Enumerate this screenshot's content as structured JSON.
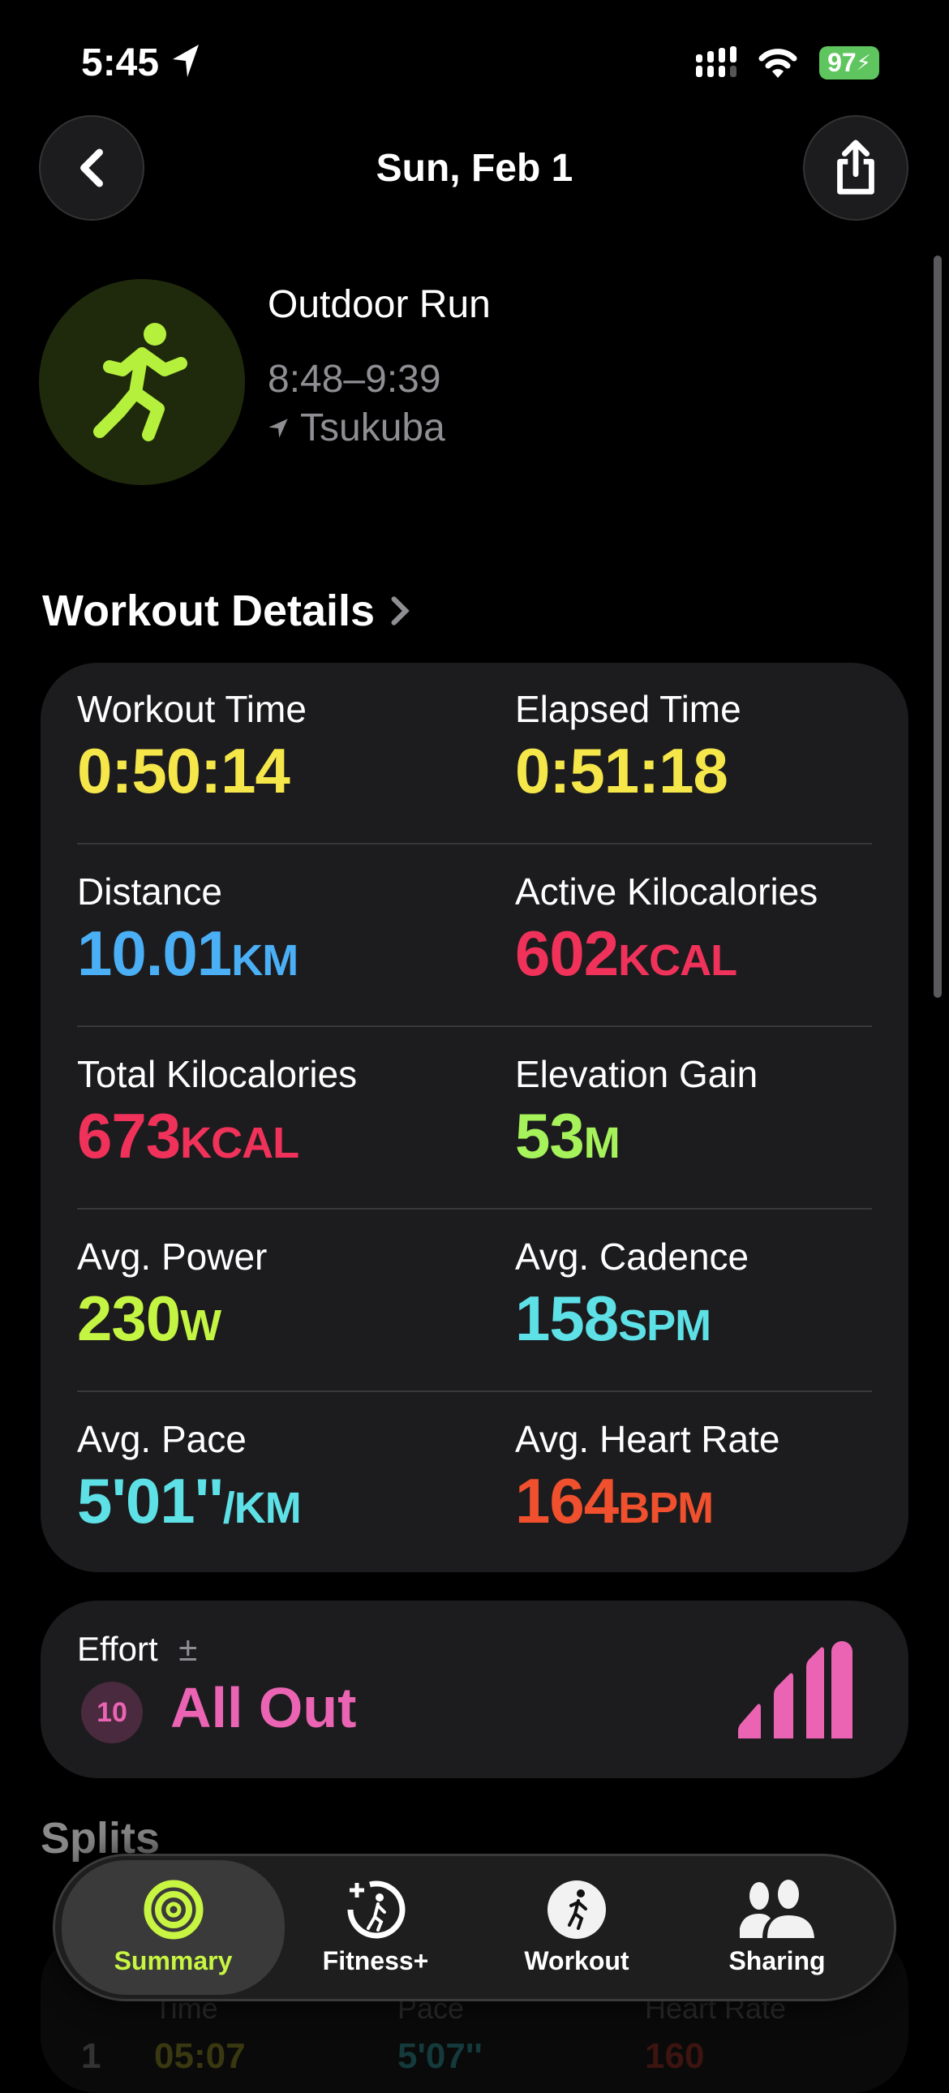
{
  "status_bar": {
    "time": "5:45",
    "battery": "97",
    "battery_color": "#5fc65f"
  },
  "header": {
    "title": "Sun, Feb 1",
    "back_icon": "chevron-left-icon",
    "share_icon": "share-icon"
  },
  "workout": {
    "type": "Outdoor Run",
    "time_range": "8:48–9:39",
    "location": "Tsukuba",
    "accent": "#b4f03c"
  },
  "details": {
    "title": "Workout Details",
    "metrics": [
      {
        "label": "Workout Time",
        "value": "0:50:14",
        "unit": "",
        "color": "#f5e64a"
      },
      {
        "label": "Elapsed Time",
        "value": "0:51:18",
        "unit": "",
        "color": "#f5e64a"
      },
      {
        "label": "Distance",
        "value": "10.01",
        "unit": "km",
        "color": "#4aaff5"
      },
      {
        "label": "Active Kilocalories",
        "value": "602",
        "unit": "kcal",
        "color": "#f0325a"
      },
      {
        "label": "Total Kilocalories",
        "value": "673",
        "unit": "kcal",
        "color": "#f0325a"
      },
      {
        "label": "Elevation Gain",
        "value": "53",
        "unit": "m",
        "color": "#a6f25a"
      },
      {
        "label": "Avg. Power",
        "value": "230",
        "unit": "W",
        "color": "#c4f542"
      },
      {
        "label": "Avg. Cadence",
        "value": "158",
        "unit": "spm",
        "color": "#5de0e6"
      },
      {
        "label": "Avg. Pace",
        "value": "5'01''",
        "unit": "/km",
        "color": "#5de0e6"
      },
      {
        "label": "Avg. Heart Rate",
        "value": "164",
        "unit": "bpm",
        "color": "#f0502d"
      }
    ]
  },
  "effort": {
    "label": "Effort",
    "adjust_symbol": "±",
    "score": "10",
    "rating": "All Out",
    "level": "4 of 4 bars",
    "color": "#eb64b4"
  },
  "splits": {
    "title": "Splits",
    "columns": [
      "Time",
      "Pace",
      "Heart Rate"
    ],
    "rows": [
      {
        "index": "1",
        "time": "05:07",
        "pace": "5'07''",
        "heart_rate": "160"
      }
    ]
  },
  "tabs": [
    {
      "label": "Summary",
      "icon": "activity-rings-icon",
      "active": true
    },
    {
      "label": "Fitness+",
      "icon": "fitness-plus-icon",
      "active": false
    },
    {
      "label": "Workout",
      "icon": "workout-runner-icon",
      "active": false
    },
    {
      "label": "Sharing",
      "icon": "sharing-people-icon",
      "active": false
    }
  ]
}
